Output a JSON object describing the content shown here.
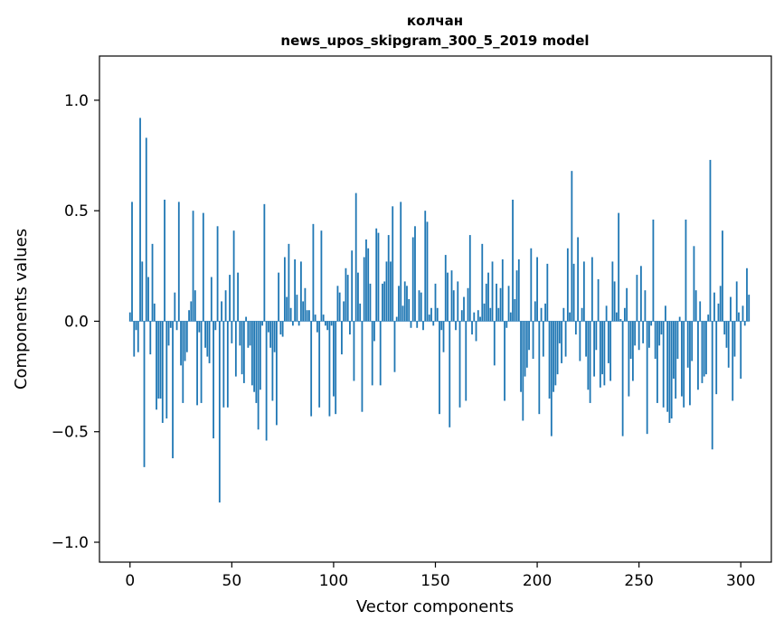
{
  "chart_data": {
    "type": "bar",
    "title": "колчан",
    "subtitle": "news_upos_skipgram_300_5_2019 model",
    "xlabel": "Vector components",
    "ylabel": "Components values",
    "xlim": [
      -15,
      315
    ],
    "ylim": [
      -1.09,
      1.2
    ],
    "xticks": [
      0,
      50,
      100,
      150,
      200,
      250,
      300
    ],
    "xtick_labels": [
      "0",
      "50",
      "100",
      "150",
      "200",
      "250",
      "300"
    ],
    "yticks": [
      -1.0,
      -0.5,
      0.0,
      0.5,
      1.0
    ],
    "ytick_labels": [
      "−1.0",
      "−0.5",
      "0.0",
      "0.5",
      "1.0"
    ],
    "grid": false,
    "bar_color": "#1f77b4",
    "x_start": 0,
    "values": [
      0.04,
      0.54,
      -0.16,
      -0.04,
      -0.14,
      0.92,
      0.27,
      -0.66,
      0.83,
      0.2,
      -0.15,
      0.35,
      0.08,
      -0.4,
      -0.35,
      -0.35,
      -0.46,
      0.55,
      -0.44,
      -0.11,
      -0.03,
      -0.62,
      0.13,
      -0.04,
      0.54,
      -0.2,
      -0.37,
      -0.18,
      -0.14,
      0.05,
      0.09,
      0.5,
      0.14,
      -0.38,
      -0.05,
      -0.37,
      0.49,
      -0.12,
      -0.16,
      -0.19,
      0.2,
      -0.53,
      -0.04,
      0.43,
      -0.82,
      0.09,
      -0.39,
      0.14,
      -0.39,
      0.21,
      -0.1,
      0.41,
      -0.25,
      0.22,
      -0.11,
      -0.24,
      -0.28,
      0.02,
      -0.12,
      -0.11,
      -0.29,
      -0.32,
      -0.37,
      -0.49,
      -0.31,
      -0.02,
      0.53,
      -0.54,
      -0.05,
      -0.12,
      -0.36,
      -0.14,
      -0.47,
      0.22,
      -0.06,
      -0.07,
      0.29,
      0.11,
      0.35,
      0.06,
      -0.02,
      0.28,
      0.12,
      -0.02,
      0.27,
      0.09,
      0.15,
      0.05,
      0.05,
      -0.43,
      0.44,
      0.03,
      -0.05,
      -0.39,
      0.41,
      0.03,
      -0.02,
      -0.04,
      -0.43,
      -0.02,
      -0.34,
      -0.42,
      0.16,
      0.13,
      -0.15,
      0.09,
      0.24,
      0.21,
      -0.06,
      0.32,
      -0.27,
      0.58,
      0.22,
      0.08,
      -0.41,
      0.29,
      0.37,
      0.33,
      0.17,
      -0.29,
      -0.09,
      0.42,
      0.4,
      -0.29,
      0.17,
      0.18,
      0.27,
      0.39,
      0.27,
      0.52,
      -0.23,
      0.02,
      0.16,
      0.54,
      0.07,
      0.18,
      0.16,
      0.1,
      -0.03,
      0.38,
      0.43,
      -0.03,
      0.14,
      0.13,
      -0.04,
      0.5,
      0.45,
      0.03,
      0.06,
      -0.02,
      0.17,
      0.06,
      -0.42,
      -0.04,
      -0.14,
      0.3,
      0.22,
      -0.48,
      0.23,
      0.14,
      -0.04,
      0.18,
      -0.39,
      0.05,
      0.11,
      -0.36,
      0.15,
      0.39,
      -0.06,
      0.04,
      -0.09,
      0.05,
      0.02,
      0.35,
      0.08,
      0.17,
      0.22,
      0.06,
      0.27,
      -0.2,
      0.17,
      0.06,
      0.15,
      0.28,
      -0.36,
      -0.03,
      0.16,
      0.04,
      0.55,
      0.1,
      0.23,
      0.28,
      -0.32,
      -0.45,
      -0.25,
      -0.21,
      -0.13,
      0.33,
      -0.17,
      0.09,
      0.29,
      -0.42,
      0.06,
      -0.16,
      0.08,
      0.26,
      -0.35,
      -0.52,
      -0.32,
      -0.29,
      -0.24,
      -0.1,
      -0.19,
      0.06,
      -0.16,
      0.33,
      0.04,
      0.68,
      0.26,
      -0.06,
      0.38,
      -0.18,
      0.06,
      0.27,
      -0.16,
      -0.31,
      -0.37,
      0.29,
      -0.25,
      -0.13,
      0.19,
      -0.3,
      -0.24,
      -0.29,
      0.07,
      -0.19,
      -0.27,
      0.27,
      0.18,
      0.04,
      0.49,
      0.01,
      -0.52,
      0.06,
      0.15,
      -0.34,
      -0.17,
      -0.27,
      -0.11,
      0.21,
      -0.13,
      0.25,
      -0.1,
      0.14,
      -0.51,
      -0.12,
      -0.02,
      0.46,
      -0.17,
      -0.37,
      -0.11,
      -0.06,
      -0.39,
      0.07,
      -0.41,
      -0.46,
      -0.44,
      -0.26,
      -0.35,
      -0.17,
      0.02,
      -0.34,
      -0.39,
      0.46,
      -0.21,
      -0.38,
      -0.18,
      0.34,
      0.14,
      -0.31,
      0.09,
      -0.28,
      -0.25,
      -0.24,
      0.03,
      0.73,
      -0.58,
      0.13,
      -0.33,
      0.08,
      0.16,
      0.41,
      -0.06,
      -0.12,
      -0.21,
      0.11,
      -0.36,
      -0.16,
      0.18,
      0.04,
      -0.26,
      0.07,
      -0.02,
      0.24,
      0.12
    ]
  }
}
